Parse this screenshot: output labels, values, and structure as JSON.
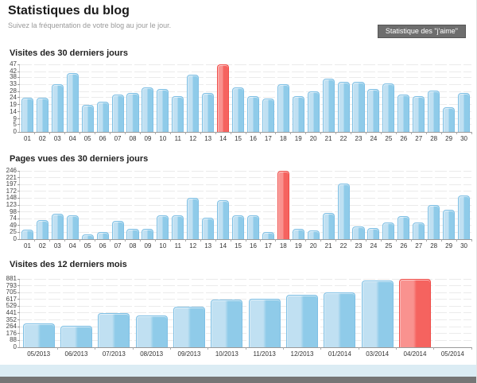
{
  "page": {
    "title": "Statistiques du blog",
    "subtitle": "Suivez la fréquentation de votre blog au jour le jour.",
    "likes_button_label": "Statistique des \"j'aime\""
  },
  "colors": {
    "bar_blue_light": "#c0e0f2",
    "bar_blue_dark": "#8fcbe9",
    "bar_blue_border": "#7fc0e5",
    "bar_red_light": "#f9928f",
    "bar_red_dark": "#f5635f",
    "bar_red_border": "#ef4e4a",
    "footer_band": "#dbecf4",
    "footer_bar": "#767676"
  },
  "chart_data": [
    {
      "type": "bar",
      "title": "Visites des 30 derniers jours",
      "categories": [
        "01",
        "02",
        "03",
        "04",
        "05",
        "06",
        "07",
        "08",
        "09",
        "10",
        "11",
        "12",
        "13",
        "14",
        "15",
        "16",
        "17",
        "18",
        "19",
        "20",
        "21",
        "22",
        "23",
        "24",
        "25",
        "26",
        "27",
        "28",
        "29",
        "30"
      ],
      "values": [
        24,
        24,
        33,
        41,
        19,
        21,
        26,
        27,
        31,
        30,
        25,
        40,
        27,
        47,
        31,
        25,
        23,
        33,
        25,
        28,
        37,
        35,
        35,
        30,
        34,
        26,
        25,
        29,
        17,
        27
      ],
      "highlight_index": 13,
      "yticks": [
        0,
        5,
        9,
        14,
        19,
        24,
        28,
        33,
        38,
        42,
        47
      ],
      "ylim": [
        0,
        47
      ],
      "xlabel": "",
      "ylabel": "",
      "grid": true,
      "legend": "none"
    },
    {
      "type": "bar",
      "title": "Pages vues des 30 derniers jours",
      "categories": [
        "01",
        "02",
        "03",
        "04",
        "05",
        "06",
        "07",
        "08",
        "09",
        "10",
        "11",
        "12",
        "13",
        "14",
        "15",
        "16",
        "17",
        "18",
        "19",
        "20",
        "21",
        "22",
        "23",
        "24",
        "25",
        "26",
        "27",
        "28",
        "29",
        "30"
      ],
      "values": [
        33,
        70,
        92,
        86,
        18,
        25,
        67,
        38,
        36,
        86,
        85,
        148,
        76,
        139,
        85,
        85,
        27,
        246,
        38,
        32,
        95,
        199,
        46,
        39,
        61,
        84,
        59,
        123,
        106,
        156
      ],
      "highlight_index": 17,
      "yticks": [
        0,
        25,
        49,
        74,
        98,
        123,
        148,
        172,
        197,
        221,
        246
      ],
      "ylim": [
        0,
        246
      ],
      "xlabel": "",
      "ylabel": "",
      "grid": true,
      "legend": "none"
    },
    {
      "type": "bar",
      "title": "Visites des 12 derniers mois",
      "categories": [
        "05/2013",
        "06/2013",
        "07/2013",
        "08/2013",
        "09/2013",
        "10/2013",
        "11/2013",
        "12/2013",
        "01/2014",
        "03/2014",
        "04/2014",
        "05/2014"
      ],
      "values": [
        310,
        277,
        441,
        413,
        520,
        617,
        628,
        680,
        705,
        865,
        881,
        0
      ],
      "highlight_index": 10,
      "yticks": [
        0,
        88,
        176,
        264,
        352,
        441,
        529,
        617,
        705,
        793,
        881
      ],
      "ylim": [
        0,
        881
      ],
      "xlabel": "",
      "ylabel": "",
      "grid": true,
      "legend": "none"
    }
  ]
}
